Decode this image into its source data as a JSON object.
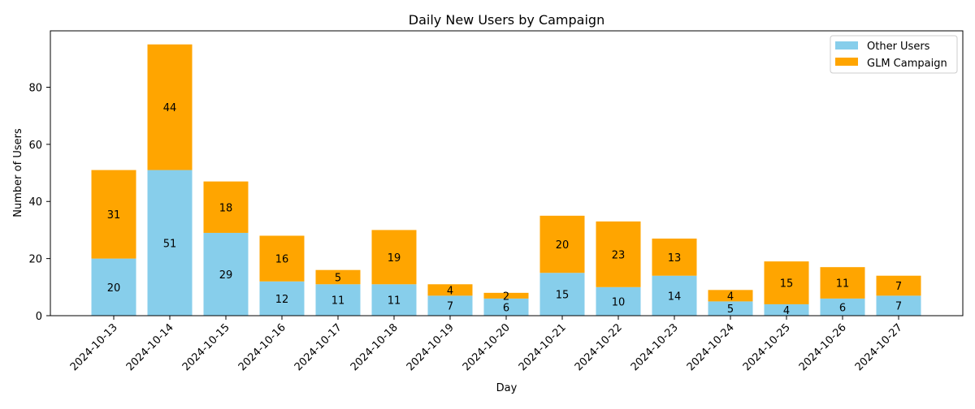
{
  "chart_data": {
    "type": "bar",
    "stacked": true,
    "title": "Daily New Users by Campaign",
    "xlabel": "Day",
    "ylabel": "Number of Users",
    "ylim": [
      0,
      99.75
    ],
    "yticks": [
      0,
      20,
      40,
      60,
      80
    ],
    "grid": false,
    "legend_position": "top-right",
    "categories": [
      "2024-10-13",
      "2024-10-14",
      "2024-10-15",
      "2024-10-16",
      "2024-10-17",
      "2024-10-18",
      "2024-10-19",
      "2024-10-20",
      "2024-10-21",
      "2024-10-22",
      "2024-10-23",
      "2024-10-24",
      "2024-10-25",
      "2024-10-26",
      "2024-10-27"
    ],
    "series": [
      {
        "name": "Other Users",
        "color": "#87CEEB",
        "values": [
          20,
          51,
          29,
          12,
          11,
          11,
          7,
          6,
          15,
          10,
          14,
          5,
          4,
          6,
          7
        ]
      },
      {
        "name": "GLM Campaign",
        "color": "#FFA500",
        "values": [
          31,
          44,
          18,
          16,
          5,
          19,
          4,
          2,
          20,
          23,
          13,
          4,
          15,
          11,
          7
        ]
      }
    ]
  }
}
